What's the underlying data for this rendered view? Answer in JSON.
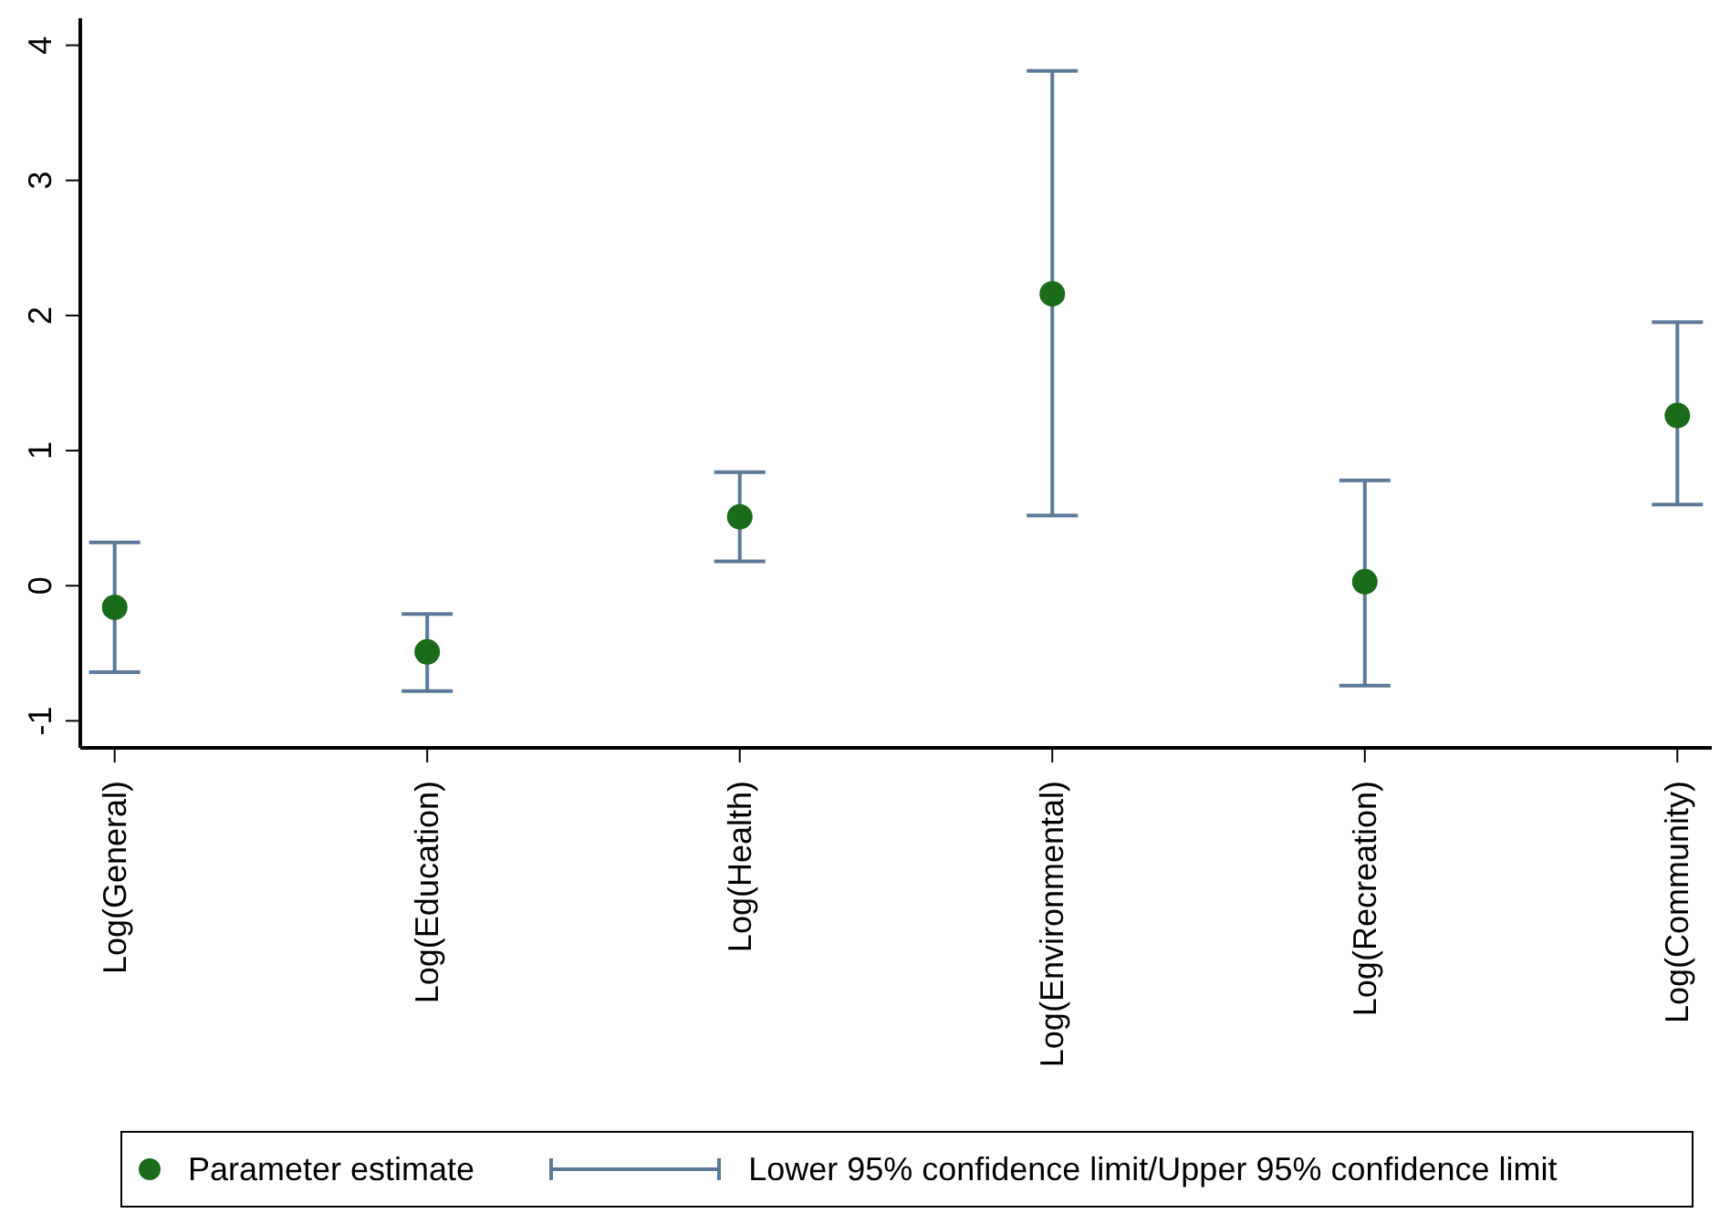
{
  "chart_data": {
    "type": "scatter",
    "categories": [
      "Log(General)",
      "Log(Education)",
      "Log(Health)",
      "Log(Environmental)",
      "Log(Recreation)",
      "Log(Community)"
    ],
    "series": [
      {
        "name": "Parameter estimate",
        "color": "#1a6b1a",
        "values": [
          -0.16,
          -0.49,
          0.51,
          2.16,
          0.03,
          1.26
        ],
        "errors": [
          [
            -0.64,
            0.32
          ],
          [
            -0.78,
            -0.21
          ],
          [
            0.18,
            0.84
          ],
          [
            0.52,
            3.81
          ],
          [
            -0.74,
            0.78
          ],
          [
            0.6,
            1.95
          ]
        ]
      }
    ],
    "annotations": [
      "Lower 95% confidence limit/Upper 95% confidence limit"
    ],
    "ylim": [
      -1.2,
      4.2
    ],
    "yticks": [
      -1,
      0,
      1,
      2,
      3,
      4
    ],
    "legend": "bottom",
    "marker": "circle"
  }
}
